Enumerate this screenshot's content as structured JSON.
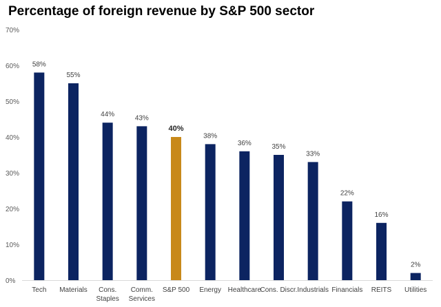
{
  "chart_data": {
    "type": "bar",
    "title": "Percentage of foreign revenue by S&P 500 sector",
    "xlabel": "",
    "ylabel": "",
    "ylim": [
      0,
      70
    ],
    "yticks": [
      "0%",
      "10%",
      "20%",
      "30%",
      "40%",
      "50%",
      "60%",
      "70%"
    ],
    "categories": [
      [
        "Tech"
      ],
      [
        "Materials"
      ],
      [
        "Cons.",
        "Staples"
      ],
      [
        "Comm.",
        "Services"
      ],
      [
        "S&P 500"
      ],
      [
        "Energy"
      ],
      [
        "Healthcare"
      ],
      [
        "Cons. Discr."
      ],
      [
        "Industrials"
      ],
      [
        "Financials"
      ],
      [
        "REITS"
      ],
      [
        "Utilities"
      ]
    ],
    "values": [
      58,
      55,
      44,
      43,
      40,
      38,
      36,
      35,
      33,
      22,
      16,
      2
    ],
    "labels": [
      "58%",
      "55%",
      "44%",
      "43%",
      "40%",
      "38%",
      "36%",
      "35%",
      "33%",
      "22%",
      "16%",
      "2%"
    ],
    "highlight_index": 4,
    "grid": false,
    "colors": {
      "bar": "#0c2461",
      "highlight": "#c8891a",
      "axis": "#d9d9d9"
    }
  }
}
